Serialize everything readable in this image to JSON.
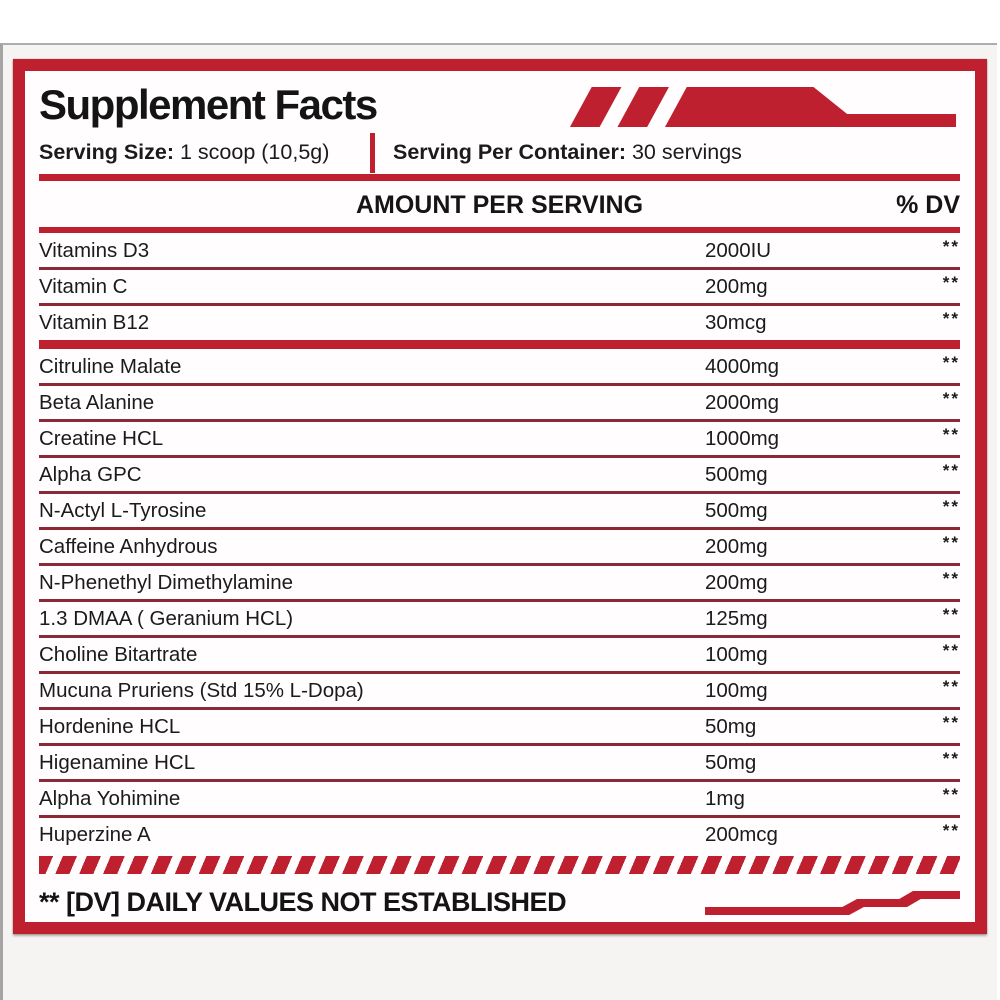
{
  "label": {
    "title": "Supplement Facts",
    "serving_size_label": "Serving Size:",
    "serving_size_value": "1 scoop (10,5g)",
    "servings_per_container_label": "Serving Per Container:",
    "servings_per_container_value": "30 servings",
    "column_header_amount": "AMOUNT PER SERVING",
    "column_header_dv": "% DV",
    "footnote": "** [DV] DAILY VALUES NOT ESTABLISHED",
    "decorations": {
      "top": "red-slash-banner",
      "divider": "red-diagonal-stripes",
      "bottom": "red-step-banner"
    },
    "colors": {
      "primary_red": "#bf202f",
      "rule_maroon": "#8c2833",
      "text": "#1b1b1b"
    },
    "sections": [
      {
        "name": "vitamins",
        "rows": [
          {
            "name": "Vitamins D3",
            "amount": "2000IU",
            "dv": "**"
          },
          {
            "name": "Vitamin C",
            "amount": "200mg",
            "dv": "**"
          },
          {
            "name": "Vitamin B12",
            "amount": "30mcg",
            "dv": "**"
          }
        ]
      },
      {
        "name": "active-ingredients",
        "rows": [
          {
            "name": "Citruline Malate",
            "amount": "4000mg",
            "dv": "**"
          },
          {
            "name": "Beta Alanine",
            "amount": "2000mg",
            "dv": "**"
          },
          {
            "name": "Creatine HCL",
            "amount": "1000mg",
            "dv": "**"
          },
          {
            "name": "Alpha GPC",
            "amount": "500mg",
            "dv": "**"
          },
          {
            "name": "N-Actyl L-Tyrosine",
            "amount": "500mg",
            "dv": "**"
          },
          {
            "name": "Caffeine Anhydrous",
            "amount": "200mg",
            "dv": "**"
          },
          {
            "name": "N-Phenethyl Dimethylamine",
            "amount": "200mg",
            "dv": "**"
          },
          {
            "name": "1.3 DMAA ( Geranium HCL)",
            "amount": "125mg",
            "dv": "**"
          },
          {
            "name": "Choline Bitartrate",
            "amount": "100mg",
            "dv": "**"
          },
          {
            "name": "Mucuna Pruriens (Std 15% L-Dopa)",
            "amount": "100mg",
            "dv": "**"
          },
          {
            "name": "Hordenine HCL",
            "amount": "50mg",
            "dv": "**"
          },
          {
            "name": "Higenamine HCL",
            "amount": "50mg",
            "dv": "**"
          },
          {
            "name": "Alpha Yohimine",
            "amount": "1mg",
            "dv": "**"
          },
          {
            "name": "Huperzine A",
            "amount": "200mcg",
            "dv": "**"
          }
        ]
      }
    ]
  }
}
